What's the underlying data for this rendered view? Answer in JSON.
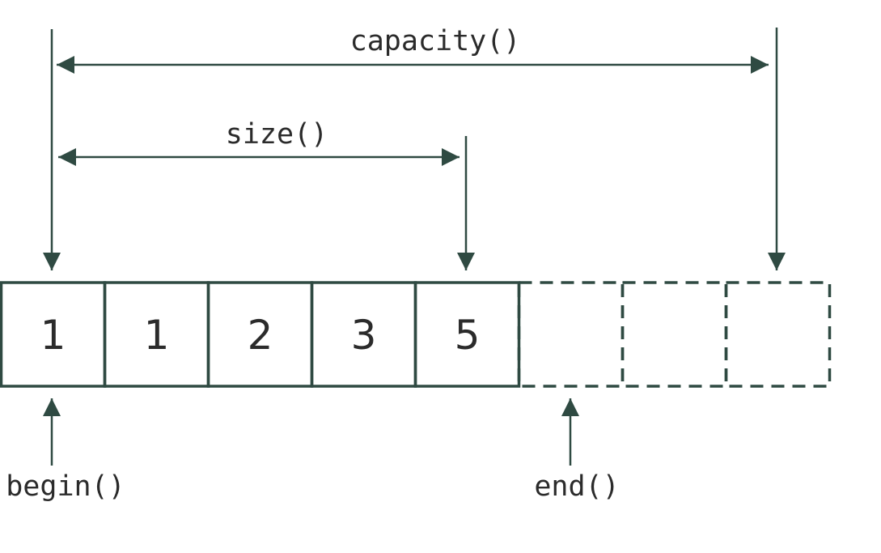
{
  "labels": {
    "capacity": "capacity()",
    "size": "size()",
    "begin": "begin()",
    "end": "end()"
  },
  "cells": [
    {
      "value": "1",
      "state": "used"
    },
    {
      "value": "1",
      "state": "used"
    },
    {
      "value": "2",
      "state": "used"
    },
    {
      "value": "3",
      "state": "used"
    },
    {
      "value": "5",
      "state": "used"
    },
    {
      "value": "",
      "state": "reserved"
    },
    {
      "value": "",
      "state": "reserved"
    },
    {
      "value": "",
      "state": "reserved"
    }
  ],
  "colors": {
    "stroke": "#2f4a42",
    "text": "#2b2b2b"
  }
}
